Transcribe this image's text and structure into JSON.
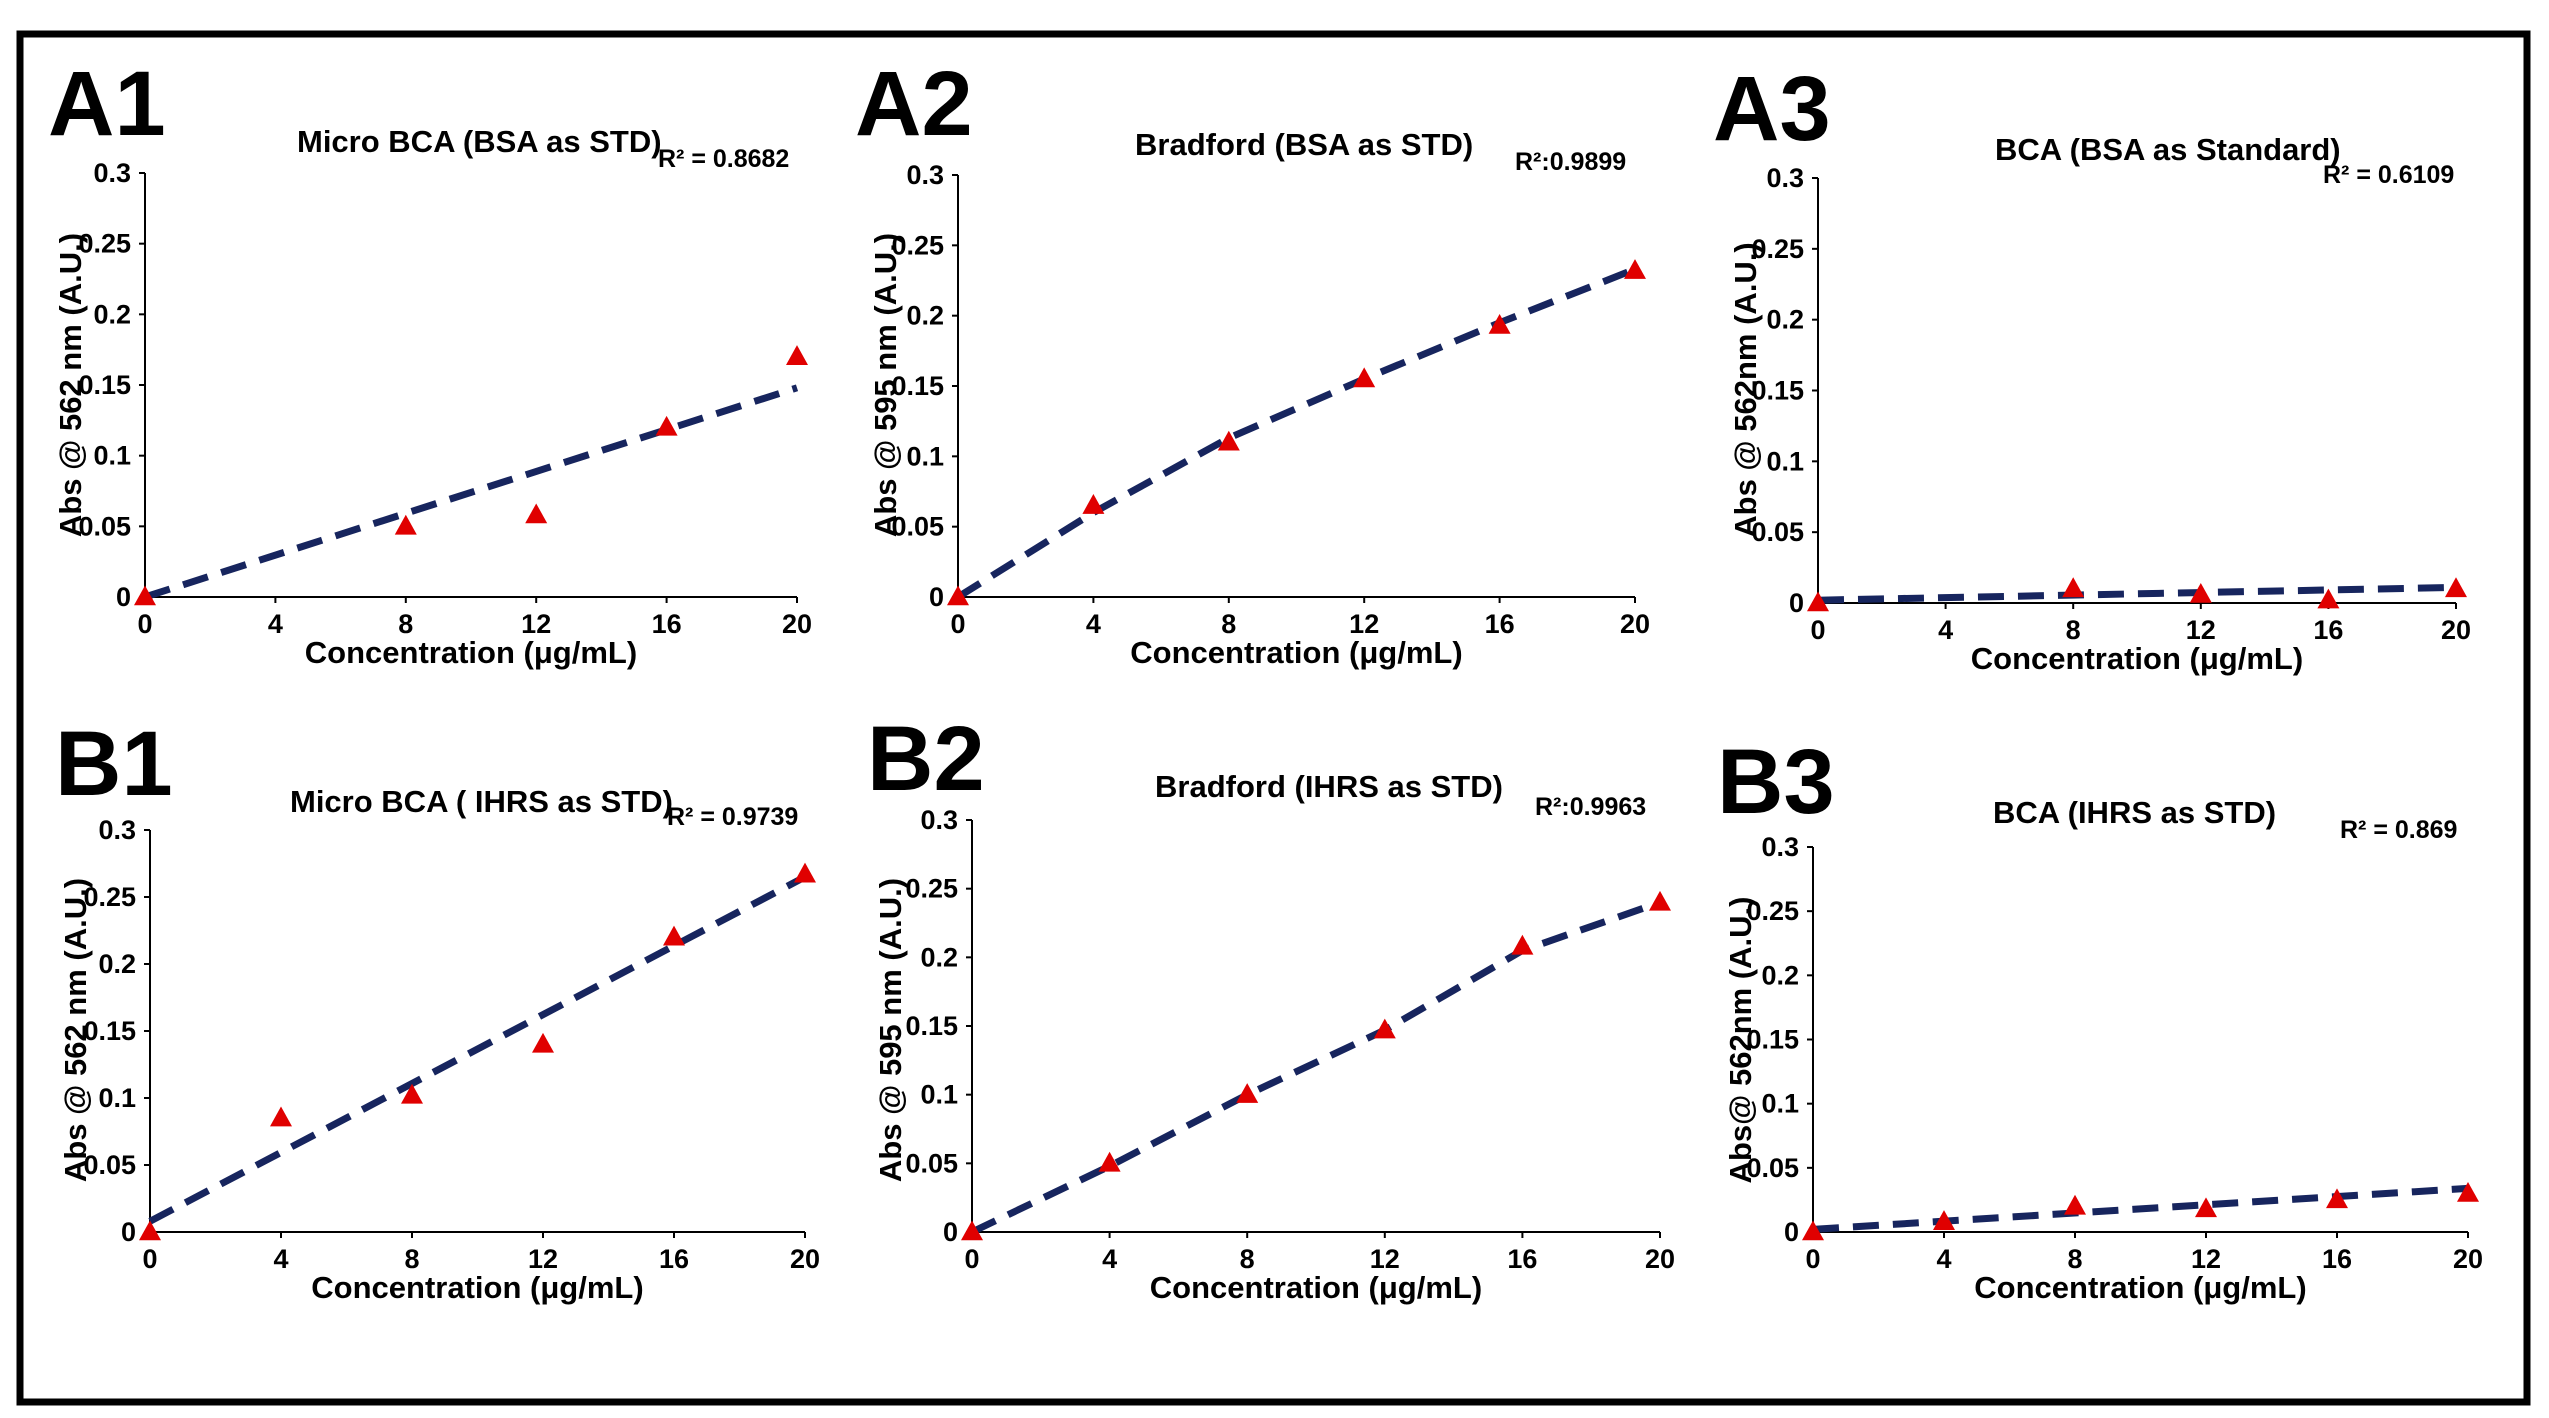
{
  "colors": {
    "marker": "#e00000",
    "trendline": "#17255e",
    "frame": "#000000"
  },
  "chart_data": [
    {
      "panel": "A1",
      "type": "scatter",
      "title": "Micro BCA (BSA as STD)",
      "r2_label": "R² = 0.8682",
      "xlabel": "Concentration (μg/mL)",
      "ylabel": "Abs @ 562 nm (A.U.)",
      "x_ticks": [
        "0",
        "4",
        "8",
        "12",
        "16",
        "20"
      ],
      "y_ticks": [
        "0",
        "0.05",
        "0.1",
        "0.15",
        "0.2",
        "0.25",
        "0.3"
      ],
      "xlim": [
        0,
        20
      ],
      "ylim": [
        0,
        0.3
      ],
      "x": [
        0,
        8,
        12,
        16,
        20
      ],
      "y": [
        0.0,
        0.05,
        0.058,
        0.12,
        0.17
      ],
      "trend": [
        [
          0,
          0.0
        ],
        [
          20,
          0.148
        ]
      ]
    },
    {
      "panel": "A2",
      "type": "scatter",
      "title": "Bradford (BSA as STD)",
      "r2_label": "R²:0.9899",
      "xlabel": "Concentration (μg/mL)",
      "ylabel": "Abs @ 595 nm (A.U.)",
      "x_ticks": [
        "0",
        "4",
        "8",
        "12",
        "16",
        "20"
      ],
      "y_ticks": [
        "0",
        "0.05",
        "0.1",
        "0.15",
        "0.2",
        "0.25",
        "0.3"
      ],
      "xlim": [
        0,
        20
      ],
      "ylim": [
        0,
        0.3
      ],
      "x": [
        0,
        4,
        8,
        12,
        16,
        20
      ],
      "y": [
        0.0,
        0.065,
        0.11,
        0.155,
        0.193,
        0.232
      ],
      "trend": [
        [
          0,
          0.0
        ],
        [
          4,
          0.06
        ],
        [
          8,
          0.113
        ],
        [
          12,
          0.155
        ],
        [
          16,
          0.195
        ],
        [
          20,
          0.233
        ]
      ]
    },
    {
      "panel": "A3",
      "type": "scatter",
      "title": "BCA (BSA as Standard)",
      "r2_label": "R² = 0.6109",
      "xlabel": "Concentration (μg/mL)",
      "ylabel": "Abs @ 562nm (A.U.)",
      "x_ticks": [
        "0",
        "4",
        "8",
        "12",
        "16",
        "20"
      ],
      "y_ticks": [
        "0",
        "0.05",
        "0.1",
        "0.15",
        "0.2",
        "0.25",
        "0.3"
      ],
      "xlim": [
        0,
        20
      ],
      "ylim": [
        0,
        0.3
      ],
      "x": [
        0,
        8,
        12,
        16,
        20
      ],
      "y": [
        0.0,
        0.01,
        0.006,
        0.002,
        0.01
      ],
      "trend": [
        [
          0,
          0.002
        ],
        [
          20,
          0.011
        ]
      ]
    },
    {
      "panel": "B1",
      "type": "scatter",
      "title": "Micro BCA ( IHRS as STD)",
      "r2_label": "R² = 0.9739",
      "xlabel": "Concentration (μg/mL)",
      "ylabel": "Abs @ 562 nm (A.U.)",
      "x_ticks": [
        "0",
        "4",
        "8",
        "12",
        "16",
        "20"
      ],
      "y_ticks": [
        "0",
        "0.05",
        "0.1",
        "0.15",
        "0.2",
        "0.25",
        "0.3"
      ],
      "xlim": [
        0,
        20
      ],
      "ylim": [
        0,
        0.3
      ],
      "x": [
        0,
        4,
        8,
        12,
        16,
        20
      ],
      "y": [
        0.0,
        0.085,
        0.102,
        0.14,
        0.22,
        0.267
      ],
      "trend": [
        [
          0,
          0.008
        ],
        [
          20,
          0.265
        ]
      ]
    },
    {
      "panel": "B2",
      "type": "scatter",
      "title": "Bradford (IHRS as STD)",
      "r2_label": "R²:0.9963",
      "xlabel": "Concentration (μg/mL)",
      "ylabel": "Abs @ 595 nm (A.U.)",
      "x_ticks": [
        "0",
        "4",
        "8",
        "12",
        "16",
        "20"
      ],
      "y_ticks": [
        "0",
        "0.05",
        "0.1",
        "0.15",
        "0.2",
        "0.25",
        "0.3"
      ],
      "xlim": [
        0,
        20
      ],
      "ylim": [
        0,
        0.3
      ],
      "x": [
        0,
        4,
        8,
        12,
        16,
        20
      ],
      "y": [
        0.0,
        0.05,
        0.1,
        0.147,
        0.208,
        0.24
      ],
      "trend": [
        [
          0,
          0.0
        ],
        [
          4,
          0.048
        ],
        [
          8,
          0.1
        ],
        [
          12,
          0.147
        ],
        [
          16,
          0.205
        ],
        [
          20,
          0.24
        ]
      ]
    },
    {
      "panel": "B3",
      "type": "scatter",
      "title": "BCA (IHRS as STD)",
      "r2_label": "R² = 0.869",
      "xlabel": "Concentration (μg/mL)",
      "ylabel": "Abs@ 562nm (A.U.)",
      "x_ticks": [
        "0",
        "4",
        "8",
        "12",
        "16",
        "20"
      ],
      "y_ticks": [
        "0",
        "0.05",
        "0.1",
        "0.15",
        "0.2",
        "0.25",
        "0.3"
      ],
      "xlim": [
        0,
        20
      ],
      "ylim": [
        0,
        0.3
      ],
      "x": [
        0,
        4,
        8,
        12,
        16,
        20
      ],
      "y": [
        0.0,
        0.008,
        0.02,
        0.018,
        0.025,
        0.03
      ],
      "trend": [
        [
          0,
          0.002
        ],
        [
          20,
          0.034
        ]
      ]
    }
  ]
}
